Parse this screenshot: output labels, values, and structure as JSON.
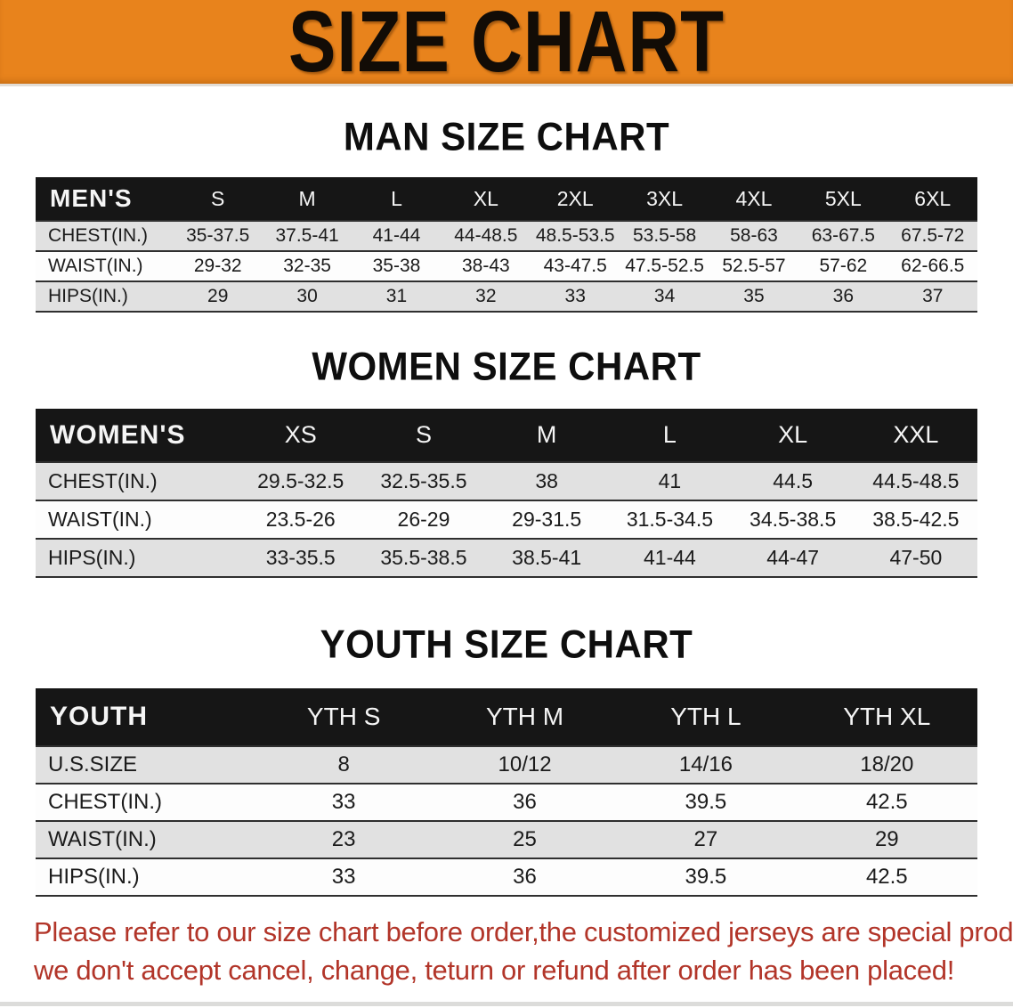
{
  "banner": {
    "title": "SIZE CHART"
  },
  "colors": {
    "banner_bg": "#e8831c",
    "banner_text": "#120c06",
    "header_bar_bg": "#161616",
    "header_bar_text": "#f5f5f5",
    "row_alt_bg": "#e1e1e1",
    "row_bg": "#fdfdfd",
    "row_border": "#2f2f2f",
    "footer_text": "#b23529"
  },
  "sections": [
    {
      "heading": "MAN SIZE CHART",
      "table": {
        "label": "MEN'S",
        "columns": [
          "S",
          "M",
          "L",
          "XL",
          "2XL",
          "3XL",
          "4XL",
          "5XL",
          "6XL"
        ],
        "rows": [
          {
            "label": "CHEST(IN.)",
            "values": [
              "35-37.5",
              "37.5-41",
              "41-44",
              "44-48.5",
              "48.5-53.5",
              "53.5-58",
              "58-63",
              "63-67.5",
              "67.5-72"
            ]
          },
          {
            "label": "WAIST(IN.)",
            "values": [
              "29-32",
              "32-35",
              "35-38",
              "38-43",
              "43-47.5",
              "47.5-52.5",
              "52.5-57",
              "57-62",
              "62-66.5"
            ]
          },
          {
            "label": "HIPS(IN.)",
            "values": [
              "29",
              "30",
              "31",
              "32",
              "33",
              "34",
              "35",
              "36",
              "37"
            ]
          }
        ]
      }
    },
    {
      "heading": "WOMEN SIZE CHART",
      "table": {
        "label": "WOMEN'S",
        "columns": [
          "XS",
          "S",
          "M",
          "L",
          "XL",
          "XXL"
        ],
        "rows": [
          {
            "label": "CHEST(IN.)",
            "values": [
              "29.5-32.5",
              "32.5-35.5",
              "38",
              "41",
              "44.5",
              "44.5-48.5"
            ]
          },
          {
            "label": "WAIST(IN.)",
            "values": [
              "23.5-26",
              "26-29",
              "29-31.5",
              "31.5-34.5",
              "34.5-38.5",
              "38.5-42.5"
            ]
          },
          {
            "label": "HIPS(IN.)",
            "values": [
              "33-35.5",
              "35.5-38.5",
              "38.5-41",
              "41-44",
              "44-47",
              "47-50"
            ]
          }
        ]
      }
    },
    {
      "heading": "YOUTH SIZE CHART",
      "table": {
        "label": "YOUTH",
        "columns": [
          "YTH S",
          "YTH M",
          "YTH L",
          "YTH XL"
        ],
        "rows": [
          {
            "label": "U.S.SIZE",
            "values": [
              "8",
              "10/12",
              "14/16",
              "18/20"
            ]
          },
          {
            "label": "CHEST(IN.)",
            "values": [
              "33",
              "36",
              "39.5",
              "42.5"
            ]
          },
          {
            "label": "WAIST(IN.)",
            "values": [
              "23",
              "25",
              "27",
              "29"
            ]
          },
          {
            "label": "HIPS(IN.)",
            "values": [
              "33",
              "36",
              "39.5",
              "42.5"
            ]
          }
        ]
      }
    }
  ],
  "footer": {
    "line1": "Please refer to our size chart before order,the customized jerseys are special products,",
    "line2": "we don't accept cancel, change, teturn or refund after order has been placed!"
  }
}
